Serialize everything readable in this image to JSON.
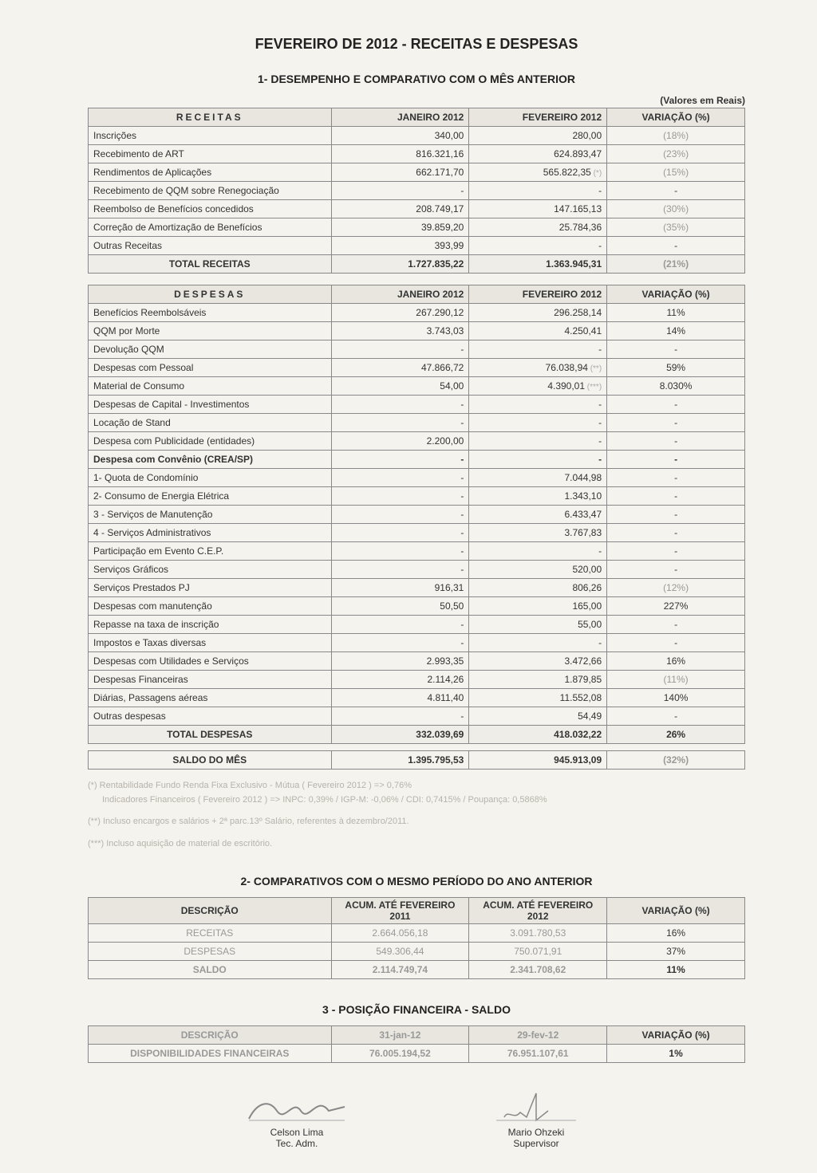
{
  "title": "FEVEREIRO DE 2012 - RECEITAS E DESPESAS",
  "section1_title": "1- DESEMPENHO E COMPARATIVO COM O MÊS ANTERIOR",
  "values_note": "(Valores em Reais)",
  "receitas_header": {
    "desc": "RECEITAS",
    "col1": "JANEIRO 2012",
    "col2": "FEVEREIRO 2012",
    "col3": "VARIAÇÃO (%)"
  },
  "receitas_rows": [
    {
      "desc": "Inscrições",
      "v1": "340,00",
      "v2": "280,00",
      "var": "(18%)",
      "neg": true
    },
    {
      "desc": "Recebimento de ART",
      "v1": "816.321,16",
      "v2": "624.893,47",
      "var": "(23%)",
      "neg": true
    },
    {
      "desc": "Rendimentos de Aplicações",
      "v1": "662.171,70",
      "v2": "565.822,35",
      "var": "(15%)",
      "neg": true,
      "annot": "(*)"
    },
    {
      "desc": "Recebimento de QQM sobre Renegociação",
      "v1": "-",
      "v2": "-",
      "var": "-"
    },
    {
      "desc": "Reembolso de Benefícios concedidos",
      "v1": "208.749,17",
      "v2": "147.165,13",
      "var": "(30%)",
      "neg": true
    },
    {
      "desc": "Correção de Amortização de Benefícios",
      "v1": "39.859,20",
      "v2": "25.784,36",
      "var": "(35%)",
      "neg": true
    },
    {
      "desc": "Outras Receitas",
      "v1": "393,99",
      "v2": "-",
      "var": "-"
    }
  ],
  "receitas_total": {
    "desc": "TOTAL RECEITAS",
    "v1": "1.727.835,22",
    "v2": "1.363.945,31",
    "var": "(21%)",
    "neg": true
  },
  "despesas_header": {
    "desc": "DESPESAS",
    "col1": "JANEIRO 2012",
    "col2": "FEVEREIRO 2012",
    "col3": "VARIAÇÃO (%)"
  },
  "despesas_rows": [
    {
      "desc": "Benefícios Reembolsáveis",
      "v1": "267.290,12",
      "v2": "296.258,14",
      "var": "11%"
    },
    {
      "desc": "QQM por Morte",
      "v1": "3.743,03",
      "v2": "4.250,41",
      "var": "14%"
    },
    {
      "desc": "Devolução QQM",
      "v1": "-",
      "v2": "-",
      "var": "-"
    },
    {
      "desc": "Despesas com Pessoal",
      "v1": "47.866,72",
      "v2": "76.038,94",
      "var": "59%",
      "annot": "(**)"
    },
    {
      "desc": "Material de Consumo",
      "v1": "54,00",
      "v2": "4.390,01",
      "var": "8.030%",
      "annot": "(***)"
    },
    {
      "desc": "Despesas de Capital - Investimentos",
      "v1": "-",
      "v2": "-",
      "var": "-"
    },
    {
      "desc": "Locação de Stand",
      "v1": "-",
      "v2": "-",
      "var": "-"
    },
    {
      "desc": "Despesa com Publicidade (entidades)",
      "v1": "2.200,00",
      "v2": "-",
      "var": "-"
    },
    {
      "desc": "Despesa com Convênio (CREA/SP)",
      "v1": "-",
      "v2": "-",
      "var": "-",
      "bold": true
    },
    {
      "desc": "1- Quota de Condomínio",
      "v1": "-",
      "v2": "7.044,98",
      "var": "-"
    },
    {
      "desc": "2- Consumo de Energia Elétrica",
      "v1": "-",
      "v2": "1.343,10",
      "var": "-"
    },
    {
      "desc": "3 - Serviços de Manutenção",
      "v1": "-",
      "v2": "6.433,47",
      "var": "-"
    },
    {
      "desc": "4 - Serviços Administrativos",
      "v1": "-",
      "v2": "3.767,83",
      "var": "-"
    },
    {
      "desc": "Participação em  Evento C.E.P.",
      "v1": "-",
      "v2": "-",
      "var": "-"
    },
    {
      "desc": "Serviços Gráficos",
      "v1": "-",
      "v2": "520,00",
      "var": "-"
    },
    {
      "desc": "Serviços Prestados PJ",
      "v1": "916,31",
      "v2": "806,26",
      "var": "(12%)",
      "neg": true
    },
    {
      "desc": "Despesas com manutenção",
      "v1": "50,50",
      "v2": "165,00",
      "var": "227%"
    },
    {
      "desc": "Repasse na taxa de inscrição",
      "v1": "-",
      "v2": "55,00",
      "var": "-"
    },
    {
      "desc": "Impostos e Taxas diversas",
      "v1": "-",
      "v2": "-",
      "var": "-"
    },
    {
      "desc": "Despesas com Utilidades e Serviços",
      "v1": "2.993,35",
      "v2": "3.472,66",
      "var": "16%"
    },
    {
      "desc": "Despesas Financeiras",
      "v1": "2.114,26",
      "v2": "1.879,85",
      "var": "(11%)",
      "neg": true
    },
    {
      "desc": "Diárias, Passagens aéreas",
      "v1": "4.811,40",
      "v2": "11.552,08",
      "var": "140%"
    },
    {
      "desc": "Outras despesas",
      "v1": "-",
      "v2": "54,49",
      "var": "-"
    }
  ],
  "despesas_total": {
    "desc": "TOTAL DESPESAS",
    "v1": "332.039,69",
    "v2": "418.032,22",
    "var": "26%"
  },
  "saldo": {
    "desc": "SALDO DO MÊS",
    "v1": "1.395.795,53",
    "v2": "945.913,09",
    "var": "(32%)",
    "neg": true
  },
  "footnotes": [
    "(*) Rentabilidade Fundo Renda Fixa Exclusivo - Mútua ( Fevereiro 2012 ) => 0,76%",
    "     Indicadores Financeiros ( Fevereiro 2012 ) =>  INPC: 0,39% / IGP-M: -0,06% / CDI: 0,7415% / Poupança: 0,5868%",
    "(**) Incluso encargos e salários + 2ª parc.13º Salário, referentes à dezembro/2011.",
    "(***) Incluso aquisição de material de escritório."
  ],
  "section2_title": "2- COMPARATIVOS COM O MESMO PERÍODO DO ANO ANTERIOR",
  "comp_header": {
    "desc": "DESCRIÇÃO",
    "col1": "ACUM. ATÉ FEVEREIRO 2011",
    "col2": "ACUM. ATÉ FEVEREIRO 2012",
    "col3": "VARIAÇÃO (%)"
  },
  "comp_rows": [
    {
      "desc": "RECEITAS",
      "v1": "2.664.056,18",
      "v2": "3.091.780,53",
      "var": "16%",
      "dim": true
    },
    {
      "desc": "DESPESAS",
      "v1": "549.306,44",
      "v2": "750.071,91",
      "var": "37%",
      "dim": true
    },
    {
      "desc": "SALDO",
      "v1": "2.114.749,74",
      "v2": "2.341.708,62",
      "var": "11%",
      "bold": true,
      "dim": true
    }
  ],
  "section3_title": "3 - POSIÇÃO FINANCEIRA - SALDO",
  "pos_header": {
    "desc": "DESCRIÇÃO",
    "col1": "31-jan-12",
    "col2": "29-fev-12",
    "col3": "VARIAÇÃO (%)"
  },
  "pos_rows": [
    {
      "desc": "DISPONIBILIDADES FINANCEIRAS",
      "v1": "76.005.194,52",
      "v2": "76.951.107,61",
      "var": "1%",
      "dim": true,
      "bold": true
    }
  ],
  "signatures": [
    {
      "name": "Celson Lima",
      "role": "Tec. Adm."
    },
    {
      "name": "Mario Ohzeki",
      "role": "Supervisor"
    }
  ]
}
